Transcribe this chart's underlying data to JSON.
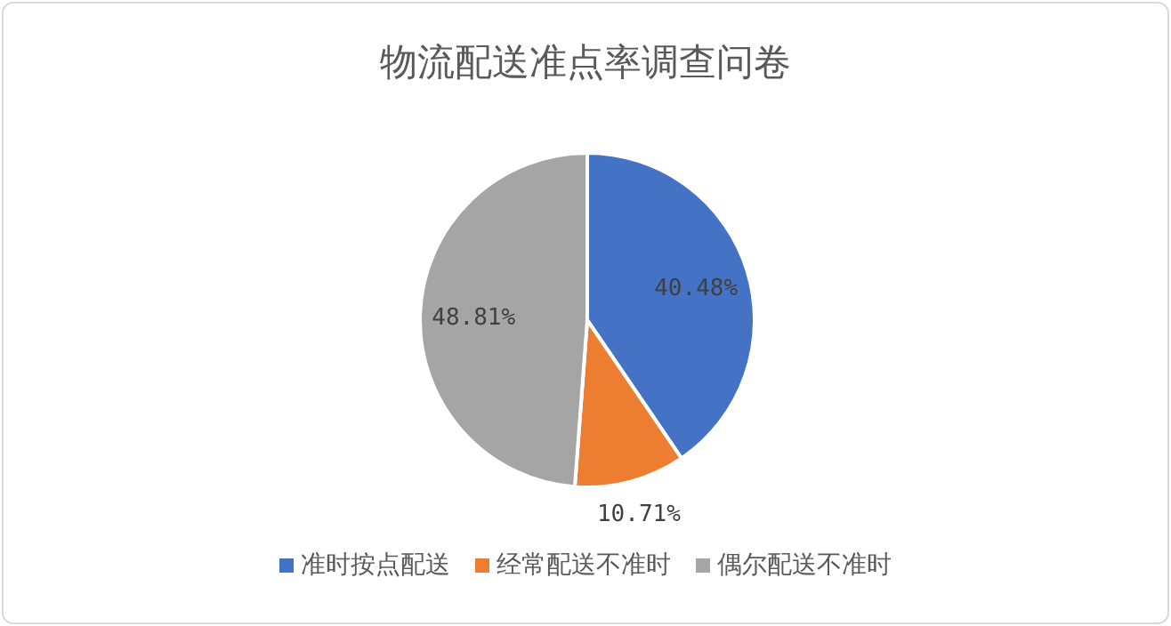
{
  "chart_data": {
    "type": "pie",
    "title": "物流配送准点率调查问卷",
    "categories": [
      "准时按点配送",
      "经常配送不准时",
      "偶尔配送不准时"
    ],
    "values": [
      40.48,
      10.71,
      48.81
    ],
    "colors": [
      "#4472c4",
      "#ed7d31",
      "#a5a5a5"
    ],
    "value_labels": [
      "40.48%",
      "10.71%",
      "48.81%"
    ],
    "legend": "bottom"
  }
}
